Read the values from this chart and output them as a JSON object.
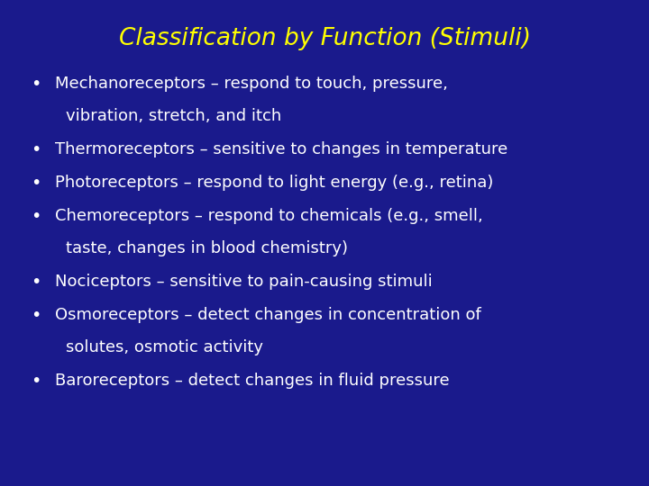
{
  "title": "Classification by Function (Stimuli)",
  "title_color": "#FFFF00",
  "title_fontsize": 19,
  "background_color": "#1a1a8c",
  "bullet_color": "#FFFFFF",
  "bullet_fontsize": 13.0,
  "bullets": [
    [
      "Mechanoreceptors – respond to touch, pressure,",
      "vibration, stretch, and itch"
    ],
    [
      "Thermoreceptors – sensitive to changes in temperature"
    ],
    [
      "Photoreceptors – respond to light energy (e.g., retina)"
    ],
    [
      "Chemoreceptors – respond to chemicals (e.g., smell,",
      "taste, changes in blood chemistry)"
    ],
    [
      "Nociceptors – sensitive to pain-causing stimuli"
    ],
    [
      "Osmoreceptors – detect changes in concentration of",
      "solutes, osmotic activity"
    ],
    [
      "Baroreceptors – detect changes in fluid pressure"
    ]
  ],
  "fig_width": 7.2,
  "fig_height": 5.4,
  "dpi": 100
}
